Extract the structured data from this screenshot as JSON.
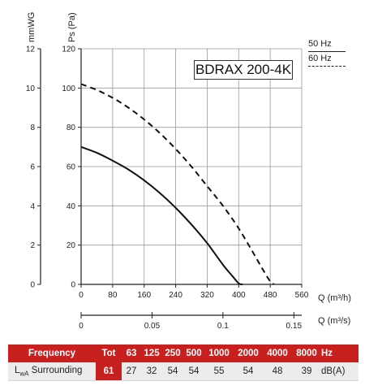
{
  "chart_data": {
    "type": "line",
    "model_label": "BDRAX 200-4K",
    "y_axis_left": {
      "label": "Ps (Pa)",
      "range": [
        0,
        120
      ],
      "ticks": [
        0,
        20,
        40,
        60,
        80,
        100,
        120
      ]
    },
    "y_axis_mmwg": {
      "label": "mmWG",
      "range": [
        0,
        12
      ],
      "ticks": [
        0,
        2,
        4,
        6,
        8,
        10,
        12
      ]
    },
    "x_axis_m3h": {
      "label": "Q (m³/h)",
      "range": [
        0,
        560
      ],
      "ticks": [
        0,
        80,
        160,
        240,
        320,
        400,
        480,
        560
      ]
    },
    "x_axis_m3s": {
      "label": "Q (m³/s)",
      "ticks": [
        {
          "v": 0,
          "t": "0"
        },
        {
          "v": 0.05,
          "t": "0.05"
        },
        {
          "v": 0.1,
          "t": "0.1"
        },
        {
          "v": 0.15,
          "t": "0.15"
        }
      ]
    },
    "grid": true,
    "series": [
      {
        "name": "50 Hz",
        "style": "solid",
        "x": [
          0,
          40,
          80,
          120,
          160,
          200,
          240,
          280,
          320,
          360,
          385,
          400,
          410
        ],
        "y": [
          70,
          67,
          63,
          58.5,
          53,
          46.5,
          39,
          30.5,
          21,
          10,
          4,
          0.5,
          0
        ]
      },
      {
        "name": "60 Hz",
        "style": "dashed",
        "x": [
          0,
          40,
          80,
          120,
          160,
          200,
          240,
          280,
          320,
          360,
          400,
          440,
          460,
          480,
          490
        ],
        "y": [
          102,
          99,
          95,
          90,
          84,
          77,
          69,
          60,
          50,
          40,
          28.5,
          15,
          8,
          1.5,
          0
        ]
      }
    ]
  },
  "legend": {
    "hz50": "50 Hz",
    "hz60": "60 Hz"
  },
  "table": {
    "header": {
      "label": "Frequency",
      "tot": "Tot",
      "freqs": [
        "63",
        "125",
        "250",
        "500",
        "1000",
        "2000",
        "4000",
        "8000"
      ],
      "unit": "Hz"
    },
    "row": {
      "label_main": "L",
      "label_sub": "wA",
      "label_rest": " Surrounding",
      "tot": "61",
      "values": [
        "27",
        "32",
        "54",
        "54",
        "55",
        "54",
        "48",
        "39"
      ],
      "unit": "dB(A)"
    }
  },
  "colors": {
    "accent": "#c8201f",
    "curve": "#111111",
    "grid": "#9a9a9a"
  }
}
